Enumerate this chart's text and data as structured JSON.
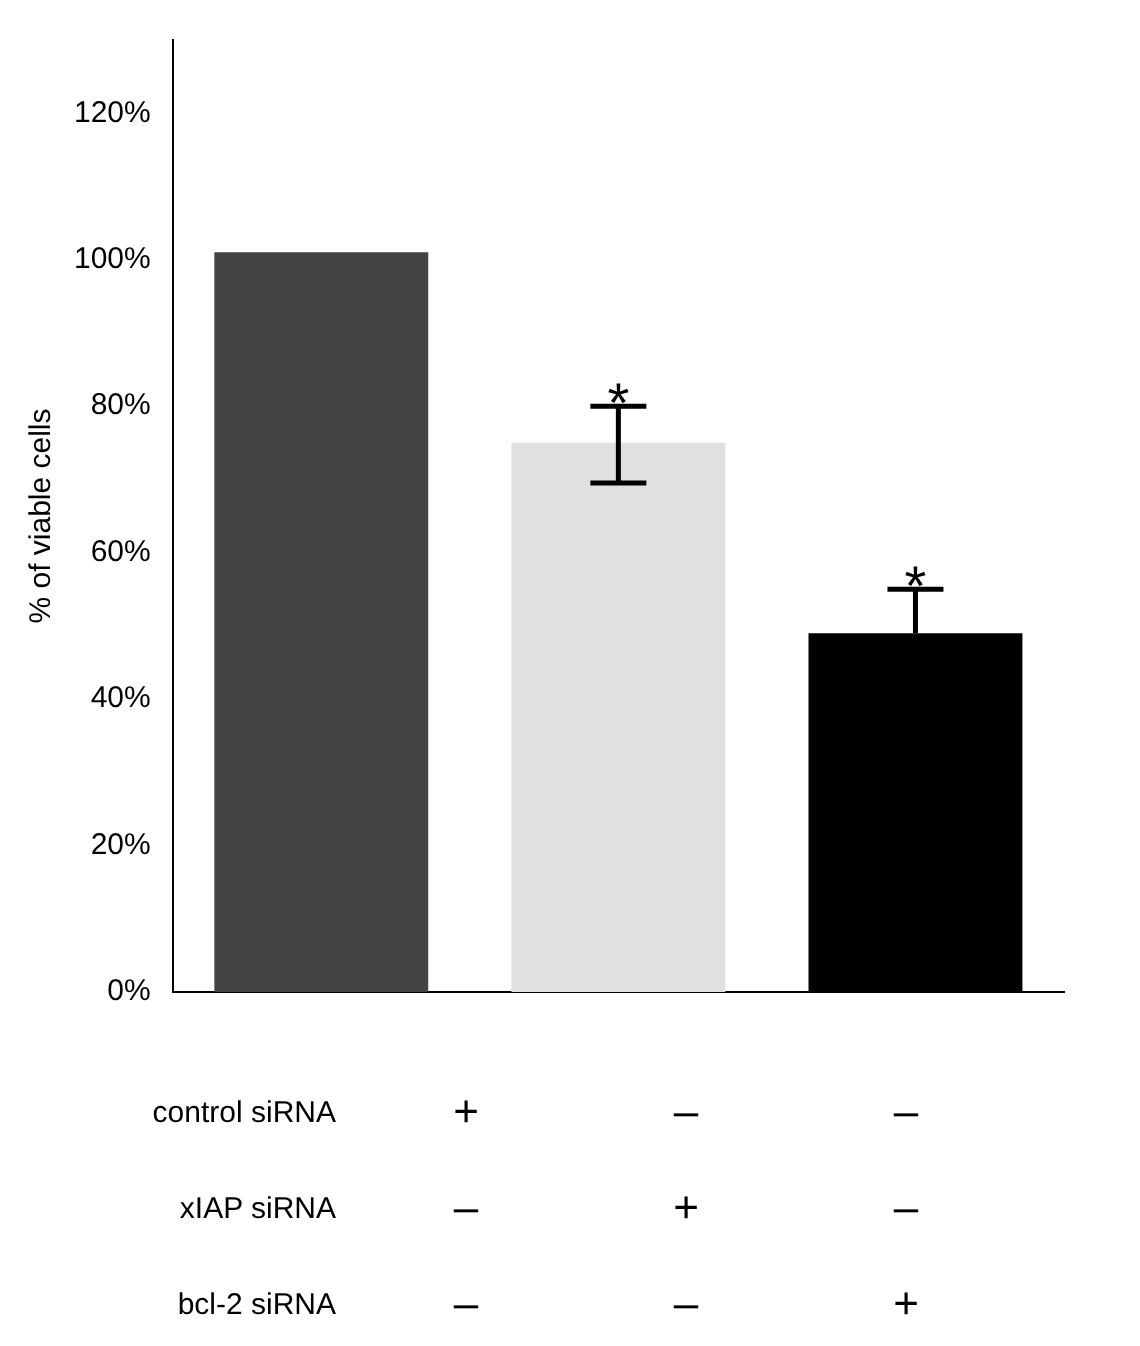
{
  "chart_data": {
    "type": "bar",
    "ylabel": "% of viable cells",
    "categories": [
      null,
      null,
      null
    ],
    "values": [
      101,
      75,
      49
    ],
    "colors": [
      "#444444",
      "#e0e0e0",
      "#000000"
    ],
    "errors": [
      null,
      [
        69.5,
        80
      ],
      [
        49,
        55
      ]
    ],
    "value_labels": [
      null,
      "*",
      "*"
    ],
    "ylim": [
      0,
      130
    ],
    "yticks": [
      {
        "value": 0,
        "label": "0%"
      },
      {
        "value": 20,
        "label": "20%"
      },
      {
        "value": 40,
        "label": "40%"
      },
      {
        "value": 60,
        "label": "60%"
      },
      {
        "value": 80,
        "label": "80%"
      },
      {
        "value": 100,
        "label": "100%"
      },
      {
        "value": 120,
        "label": "120%"
      }
    ],
    "grid": false,
    "legend": false,
    "annotations": [
      "control siRNA",
      "+",
      "–",
      "–",
      "xIAP siRNA",
      "–",
      "+",
      "–",
      "bcl-2 siRNA",
      "–",
      "–",
      "+"
    ]
  }
}
